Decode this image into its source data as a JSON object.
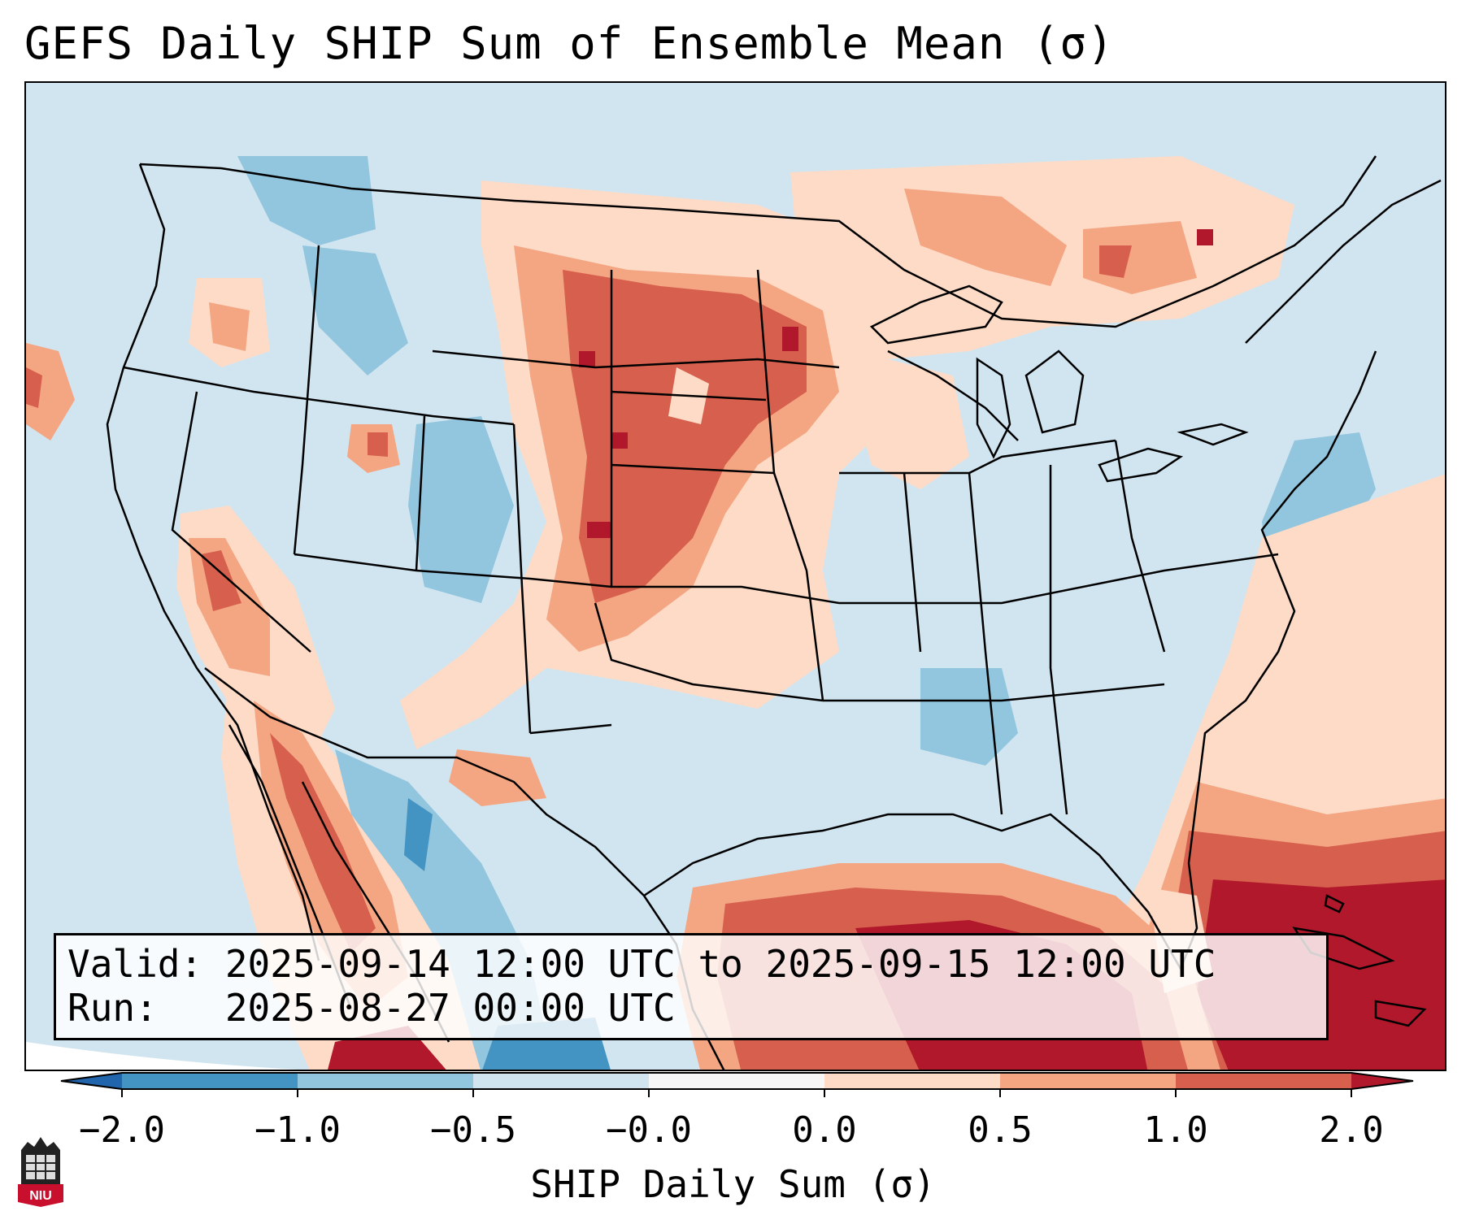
{
  "title": "GEFS Daily SHIP Sum of Ensemble Mean (σ)",
  "info": {
    "valid": "Valid: 2025-09-14 12:00 UTC to 2025-09-15 12:00 UTC",
    "run": "Run:   2025-08-27 00:00 UTC"
  },
  "colorbar": {
    "label": "SHIP Daily Sum (σ)",
    "ticks": [
      "−2.0",
      "−1.0",
      "−0.5",
      "−0.0",
      "0.0",
      "0.5",
      "1.0",
      "2.0"
    ],
    "colors": [
      "#2166ac",
      "#4393c3",
      "#92c5de",
      "#d1e5f0",
      "#f7f7f7",
      "#fddbc7",
      "#f4a582",
      "#d6604d",
      "#b2182b"
    ]
  },
  "logo": {
    "text": "NIU",
    "name": "Northern Illinois University"
  },
  "map_regions": [
    {
      "name": "northern-plains-positive",
      "level": "1.0"
    },
    {
      "name": "gulf-of-mexico-positive",
      "level": "2.0"
    },
    {
      "name": "caribbean-positive",
      "level": "2.0"
    },
    {
      "name": "great-lakes-canada-positive",
      "level": "0.5"
    },
    {
      "name": "mexico-plateau-negative",
      "level": "-0.5"
    }
  ]
}
